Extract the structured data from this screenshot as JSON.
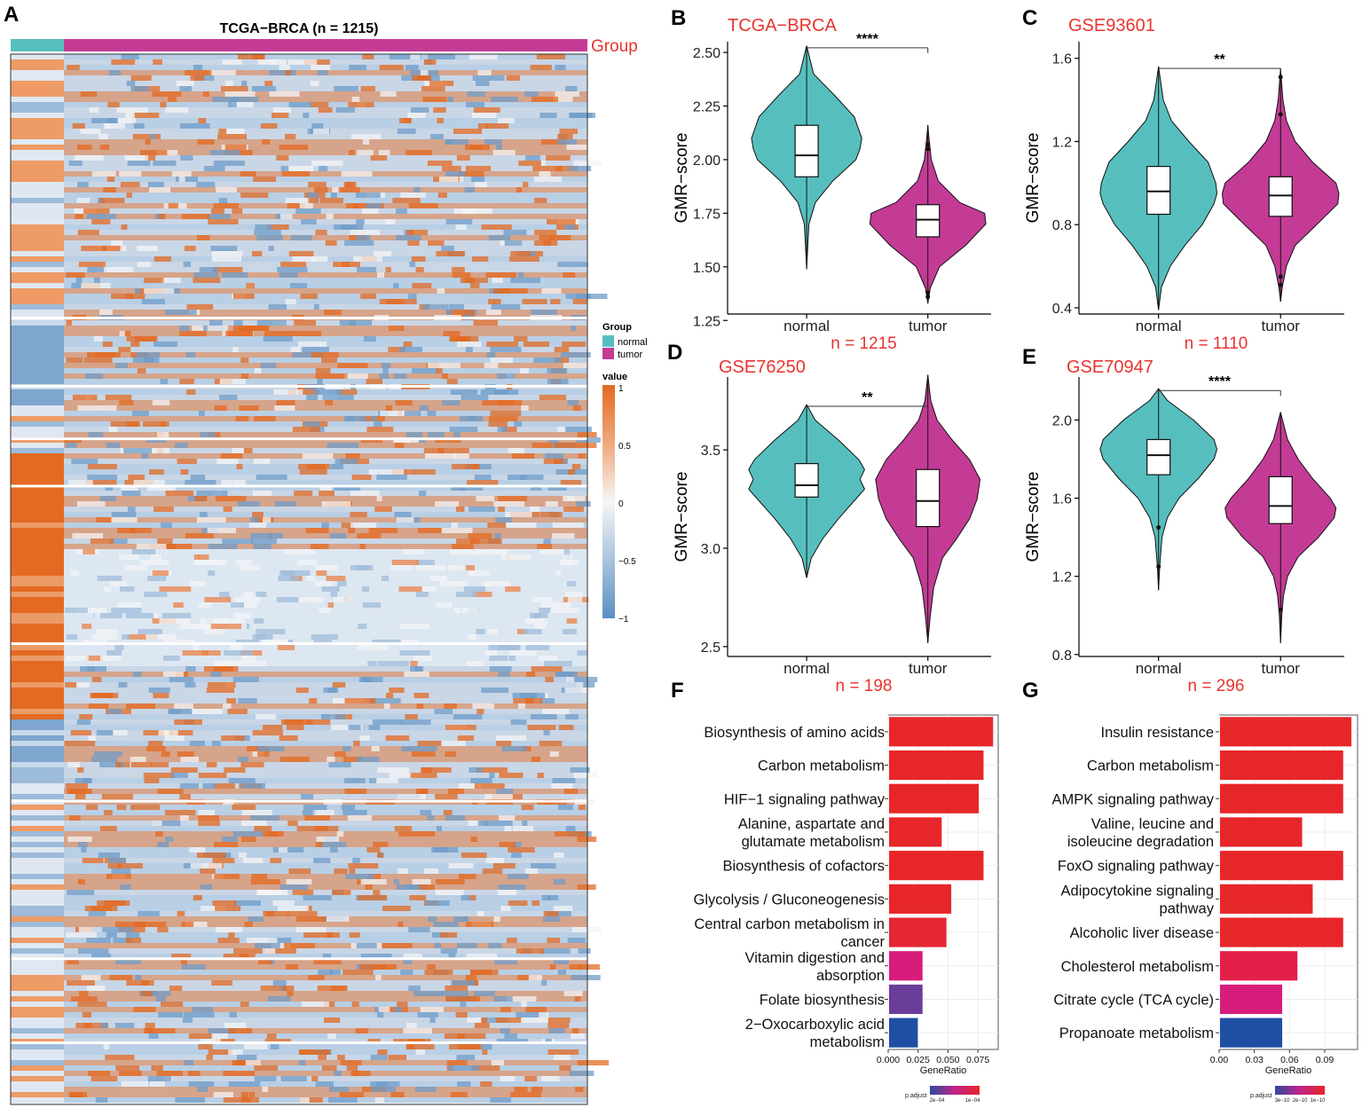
{
  "colors": {
    "normal": "#56bfbe",
    "tumor": "#c43b96",
    "red_text": "#e8332e",
    "heat_high": "#e36a22",
    "heat_low": "#5a8fc0",
    "heat_mid": "#f4f4f6"
  },
  "heatmap": {
    "panel": "A",
    "title": "TCGA−BRCA (n = 1215)",
    "group_label": "Group",
    "legend": {
      "group_title": "Group",
      "groups": [
        "normal",
        "tumor"
      ],
      "value_title": "value",
      "ticks": [
        "1",
        "0.5",
        "0",
        "−0.5",
        "−1"
      ]
    }
  },
  "chart_data": [
    {
      "type": "violin",
      "panel": "B",
      "title": "TCGA−BRCA",
      "ylabel": "GMR−score",
      "categories": [
        "normal",
        "tumor"
      ],
      "ylim": [
        1.28,
        2.55
      ],
      "yticks": [
        "1.25",
        "1.50",
        "1.75",
        "2.00",
        "2.25",
        "2.50"
      ],
      "significance": "****",
      "n_label": "n = 1215",
      "groups": [
        {
          "name": "normal",
          "min": 1.49,
          "max": 2.53,
          "q1": 1.92,
          "median": 2.02,
          "q3": 2.16,
          "wlo": 1.6,
          "whi": 2.4,
          "outliers": [],
          "density": [
            [
              1.49,
              0.0
            ],
            [
              1.6,
              0.02
            ],
            [
              1.7,
              0.04
            ],
            [
              1.8,
              0.15
            ],
            [
              1.9,
              0.45
            ],
            [
              2.0,
              0.85
            ],
            [
              2.05,
              0.92
            ],
            [
              2.1,
              0.95
            ],
            [
              2.2,
              0.82
            ],
            [
              2.3,
              0.48
            ],
            [
              2.4,
              0.12
            ],
            [
              2.53,
              0.0
            ]
          ]
        },
        {
          "name": "tumor",
          "min": 1.33,
          "max": 2.16,
          "q1": 1.64,
          "median": 1.72,
          "q3": 1.79,
          "wlo": 1.4,
          "whi": 2.03,
          "outliers": [
            1.36,
            1.38,
            2.05,
            2.07
          ],
          "density": [
            [
              1.33,
              0.0
            ],
            [
              1.4,
              0.04
            ],
            [
              1.5,
              0.2
            ],
            [
              1.6,
              0.65
            ],
            [
              1.7,
              1.0
            ],
            [
              1.75,
              0.98
            ],
            [
              1.8,
              0.55
            ],
            [
              1.9,
              0.18
            ],
            [
              2.0,
              0.06
            ],
            [
              2.1,
              0.02
            ],
            [
              2.16,
              0.0
            ]
          ]
        }
      ]
    },
    {
      "type": "violin",
      "panel": "C",
      "title": "GSE93601",
      "ylabel": "GMR−score",
      "categories": [
        "normal",
        "tumor"
      ],
      "ylim": [
        0.37,
        1.68
      ],
      "yticks": [
        "0.4",
        "0.8",
        "1.2",
        "1.6"
      ],
      "significance": "**",
      "n_label": "n = 1110",
      "groups": [
        {
          "name": "normal",
          "min": 0.39,
          "max": 1.56,
          "q1": 0.85,
          "median": 0.96,
          "q3": 1.08,
          "wlo": 0.5,
          "whi": 1.4,
          "outliers": [],
          "density": [
            [
              0.39,
              0.0
            ],
            [
              0.5,
              0.05
            ],
            [
              0.6,
              0.2
            ],
            [
              0.7,
              0.45
            ],
            [
              0.8,
              0.75
            ],
            [
              0.9,
              0.95
            ],
            [
              0.95,
              1.0
            ],
            [
              1.0,
              0.98
            ],
            [
              1.1,
              0.85
            ],
            [
              1.2,
              0.52
            ],
            [
              1.3,
              0.22
            ],
            [
              1.4,
              0.08
            ],
            [
              1.56,
              0.0
            ]
          ]
        },
        {
          "name": "tumor",
          "min": 0.43,
          "max": 1.55,
          "q1": 0.84,
          "median": 0.94,
          "q3": 1.03,
          "wlo": 0.56,
          "whi": 1.3,
          "outliers": [
            0.51,
            0.55,
            1.33,
            1.51
          ],
          "density": [
            [
              0.43,
              0.0
            ],
            [
              0.5,
              0.03
            ],
            [
              0.6,
              0.1
            ],
            [
              0.7,
              0.25
            ],
            [
              0.8,
              0.62
            ],
            [
              0.9,
              0.98
            ],
            [
              0.95,
              1.0
            ],
            [
              1.0,
              0.95
            ],
            [
              1.1,
              0.55
            ],
            [
              1.2,
              0.25
            ],
            [
              1.3,
              0.1
            ],
            [
              1.4,
              0.04
            ],
            [
              1.55,
              0.0
            ]
          ]
        }
      ]
    },
    {
      "type": "violin",
      "panel": "D",
      "title": "GSE76250",
      "ylabel": "GMR−score",
      "categories": [
        "normal",
        "tumor"
      ],
      "ylim": [
        2.45,
        3.87
      ],
      "yticks": [
        "2.5",
        "3.0",
        "3.5"
      ],
      "significance": "**",
      "n_label": "n = 198",
      "groups": [
        {
          "name": "normal",
          "min": 2.85,
          "max": 3.73,
          "q1": 3.26,
          "median": 3.32,
          "q3": 3.43,
          "wlo": 3.0,
          "whi": 3.57,
          "outliers": [],
          "density": [
            [
              2.85,
              0.0
            ],
            [
              2.95,
              0.08
            ],
            [
              3.05,
              0.28
            ],
            [
              3.15,
              0.55
            ],
            [
              3.25,
              0.85
            ],
            [
              3.3,
              1.0
            ],
            [
              3.35,
              0.92
            ],
            [
              3.4,
              1.0
            ],
            [
              3.45,
              0.9
            ],
            [
              3.55,
              0.55
            ],
            [
              3.65,
              0.15
            ],
            [
              3.73,
              0.0
            ]
          ]
        },
        {
          "name": "tumor",
          "min": 2.52,
          "max": 3.88,
          "q1": 3.11,
          "median": 3.24,
          "q3": 3.4,
          "wlo": 2.75,
          "whi": 3.72,
          "outliers": [],
          "density": [
            [
              2.52,
              0.0
            ],
            [
              2.65,
              0.04
            ],
            [
              2.8,
              0.1
            ],
            [
              2.95,
              0.25
            ],
            [
              3.05,
              0.5
            ],
            [
              3.15,
              0.72
            ],
            [
              3.25,
              0.85
            ],
            [
              3.35,
              0.9
            ],
            [
              3.45,
              0.72
            ],
            [
              3.55,
              0.42
            ],
            [
              3.65,
              0.16
            ],
            [
              3.75,
              0.05
            ],
            [
              3.88,
              0.0
            ]
          ]
        }
      ]
    },
    {
      "type": "violin",
      "panel": "E",
      "title": "GSE70947",
      "ylabel": "GMR−score",
      "categories": [
        "normal",
        "tumor"
      ],
      "ylim": [
        0.79,
        2.22
      ],
      "yticks": [
        "0.8",
        "1.2",
        "1.6",
        "2.0"
      ],
      "significance": "****",
      "n_label": "n = 296",
      "groups": [
        {
          "name": "normal",
          "min": 1.13,
          "max": 2.16,
          "q1": 1.72,
          "median": 1.82,
          "q3": 1.9,
          "wlo": 1.45,
          "whi": 2.05,
          "outliers": [
            1.25,
            1.45
          ],
          "density": [
            [
              1.13,
              0.0
            ],
            [
              1.25,
              0.02
            ],
            [
              1.4,
              0.06
            ],
            [
              1.5,
              0.15
            ],
            [
              1.6,
              0.35
            ],
            [
              1.7,
              0.68
            ],
            [
              1.8,
              0.95
            ],
            [
              1.85,
              1.0
            ],
            [
              1.9,
              0.95
            ],
            [
              2.0,
              0.6
            ],
            [
              2.1,
              0.15
            ],
            [
              2.16,
              0.0
            ]
          ]
        },
        {
          "name": "tumor",
          "min": 0.86,
          "max": 2.04,
          "q1": 1.47,
          "median": 1.56,
          "q3": 1.71,
          "wlo": 1.1,
          "whi": 1.95,
          "outliers": [
            1.03
          ],
          "density": [
            [
              0.86,
              0.0
            ],
            [
              1.0,
              0.02
            ],
            [
              1.1,
              0.05
            ],
            [
              1.2,
              0.12
            ],
            [
              1.3,
              0.3
            ],
            [
              1.4,
              0.65
            ],
            [
              1.5,
              0.92
            ],
            [
              1.55,
              0.95
            ],
            [
              1.6,
              0.85
            ],
            [
              1.7,
              0.55
            ],
            [
              1.8,
              0.3
            ],
            [
              1.9,
              0.12
            ],
            [
              2.04,
              0.0
            ]
          ]
        }
      ]
    },
    {
      "type": "bar",
      "panel": "F",
      "orientation": "horizontal",
      "xlabel": "GeneRatio",
      "xlim": [
        0,
        0.092
      ],
      "xticks": [
        "0.000",
        "0.025",
        "0.050",
        "0.075"
      ],
      "legend_title": "p.adjust",
      "legend_ticks": [
        "2e−04",
        "1e−04"
      ],
      "categories": [
        [
          "Biosynthesis of amino acids"
        ],
        [
          "Carbon metabolism"
        ],
        [
          "HIF−1 signaling pathway"
        ],
        [
          "Alanine, aspartate and",
          "glutamate metabolism"
        ],
        [
          "Biosynthesis of cofactors"
        ],
        [
          "Glycolysis / Gluconeogenesis"
        ],
        [
          "Central carbon metabolism in",
          "cancer"
        ],
        [
          "Vitamin digestion and",
          "absorption"
        ],
        [
          "Folate biosynthesis"
        ],
        [
          "2−Oxocarboxylic acid",
          "metabolism"
        ]
      ],
      "values": [
        0.087,
        0.079,
        0.075,
        0.044,
        0.079,
        0.052,
        0.048,
        0.028,
        0.028,
        0.024
      ],
      "bar_colors": [
        "#e7262a",
        "#e7262a",
        "#e7262a",
        "#e7262a",
        "#e7262a",
        "#e7262a",
        "#e52735",
        "#d81c7c",
        "#6b3d9a",
        "#1f4fa2"
      ]
    },
    {
      "type": "bar",
      "panel": "G",
      "orientation": "horizontal",
      "xlabel": "GeneRatio",
      "xlim": [
        0,
        0.118
      ],
      "xticks": [
        "0.00",
        "0.03",
        "0.06",
        "0.09"
      ],
      "legend_title": "p.adjust",
      "legend_ticks": [
        "3e−10",
        "2e−10",
        "1e−10"
      ],
      "categories": [
        [
          "Insulin resistance"
        ],
        [
          "Carbon metabolism"
        ],
        [
          "AMPK signaling pathway"
        ],
        [
          "Valine, leucine and",
          "isoleucine degradation"
        ],
        [
          "FoxO signaling pathway"
        ],
        [
          "Adipocytokine signaling",
          "pathway"
        ],
        [
          "Alcoholic liver disease"
        ],
        [
          "Cholesterol metabolism"
        ],
        [
          "Citrate cycle (TCA cycle)"
        ],
        [
          "Propanoate metabolism"
        ]
      ],
      "values": [
        0.112,
        0.105,
        0.105,
        0.07,
        0.105,
        0.079,
        0.105,
        0.066,
        0.053,
        0.053
      ],
      "bar_colors": [
        "#e7262a",
        "#e7262a",
        "#e7262a",
        "#e7262a",
        "#e7262a",
        "#e7262a",
        "#e7262a",
        "#e3204a",
        "#d81c7c",
        "#1f4fa2"
      ]
    }
  ]
}
